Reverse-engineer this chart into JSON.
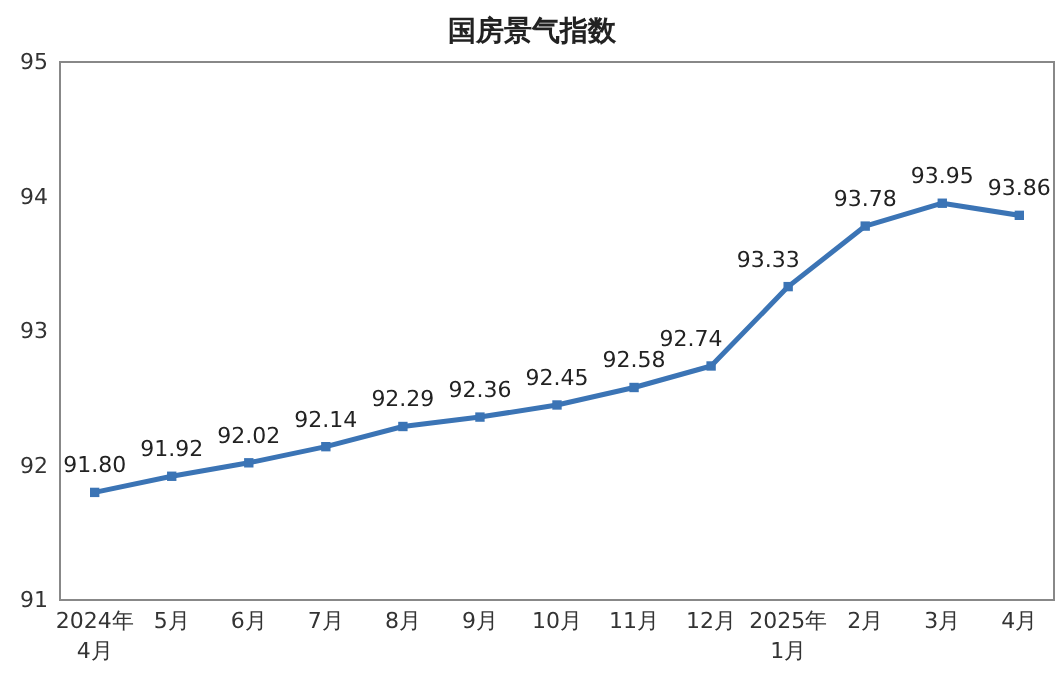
{
  "chart_data": {
    "type": "line",
    "title": "国房景气指数",
    "categories": [
      "2024年\n4月",
      "5月",
      "6月",
      "7月",
      "8月",
      "9月",
      "10月",
      "11月",
      "12月",
      "2025年\n1月",
      "2月",
      "3月",
      "4月"
    ],
    "series": [
      {
        "color": "#3b74b5",
        "values": [
          91.8,
          91.92,
          92.02,
          92.14,
          92.29,
          92.36,
          92.45,
          92.58,
          92.74,
          93.33,
          93.78,
          93.95,
          93.86
        ],
        "value_labels": [
          "91.80",
          "91.92",
          "92.02",
          "92.14",
          "92.29",
          "92.36",
          "92.45",
          "92.58",
          "92.74",
          "93.33",
          "93.78",
          "93.95",
          "93.86"
        ]
      }
    ],
    "ylim": [
      91,
      95
    ],
    "yticks": [
      91,
      92,
      93,
      94,
      95
    ],
    "grid": false,
    "marker": "square",
    "line_style": "solid"
  }
}
